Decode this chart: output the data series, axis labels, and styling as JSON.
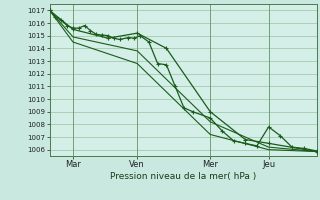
{
  "background_color": "#c8e8e0",
  "plot_bg_color": "#d4eee8",
  "grid_color": "#90b890",
  "line_color": "#1a5c1a",
  "xlabel": "Pression niveau de la mer( hPa )",
  "ylim": [
    1005.5,
    1017.5
  ],
  "yticks": [
    1006,
    1007,
    1008,
    1009,
    1010,
    1011,
    1012,
    1013,
    1014,
    1015,
    1016,
    1017
  ],
  "x_tick_labels": [
    "Mar",
    "Ven",
    "Mer",
    "Jeu"
  ],
  "x_tick_positions": [
    16,
    60,
    110,
    150
  ],
  "xlim": [
    0,
    183
  ],
  "series1_x": [
    0,
    4,
    8,
    12,
    16,
    20,
    24,
    28,
    32,
    36,
    40,
    44,
    48,
    54,
    58,
    62,
    68,
    74,
    80,
    86,
    92,
    98,
    110,
    118,
    126,
    134,
    142,
    150,
    158,
    166,
    174,
    183
  ],
  "series1_y": [
    1017.0,
    1016.5,
    1016.2,
    1015.8,
    1015.6,
    1015.6,
    1015.8,
    1015.4,
    1015.1,
    1015.05,
    1015.0,
    1014.8,
    1014.7,
    1014.85,
    1014.8,
    1015.0,
    1014.5,
    1012.8,
    1012.7,
    1011.0,
    1009.3,
    1009.0,
    1008.5,
    1007.5,
    1006.7,
    1006.5,
    1006.3,
    1007.8,
    1007.1,
    1006.2,
    1006.1,
    1005.9
  ],
  "series2_x": [
    0,
    16,
    40,
    60,
    80,
    110,
    134,
    150,
    183
  ],
  "series2_y": [
    1017.0,
    1015.5,
    1014.8,
    1015.2,
    1014.0,
    1009.0,
    1006.8,
    1006.5,
    1005.85
  ],
  "series3_x": [
    0,
    16,
    60,
    110,
    150,
    183
  ],
  "series3_y": [
    1017.0,
    1014.9,
    1013.8,
    1008.2,
    1006.2,
    1005.85
  ],
  "series4_x": [
    0,
    16,
    60,
    110,
    150,
    183
  ],
  "series4_y": [
    1017.0,
    1014.5,
    1012.8,
    1007.2,
    1006.0,
    1005.85
  ]
}
